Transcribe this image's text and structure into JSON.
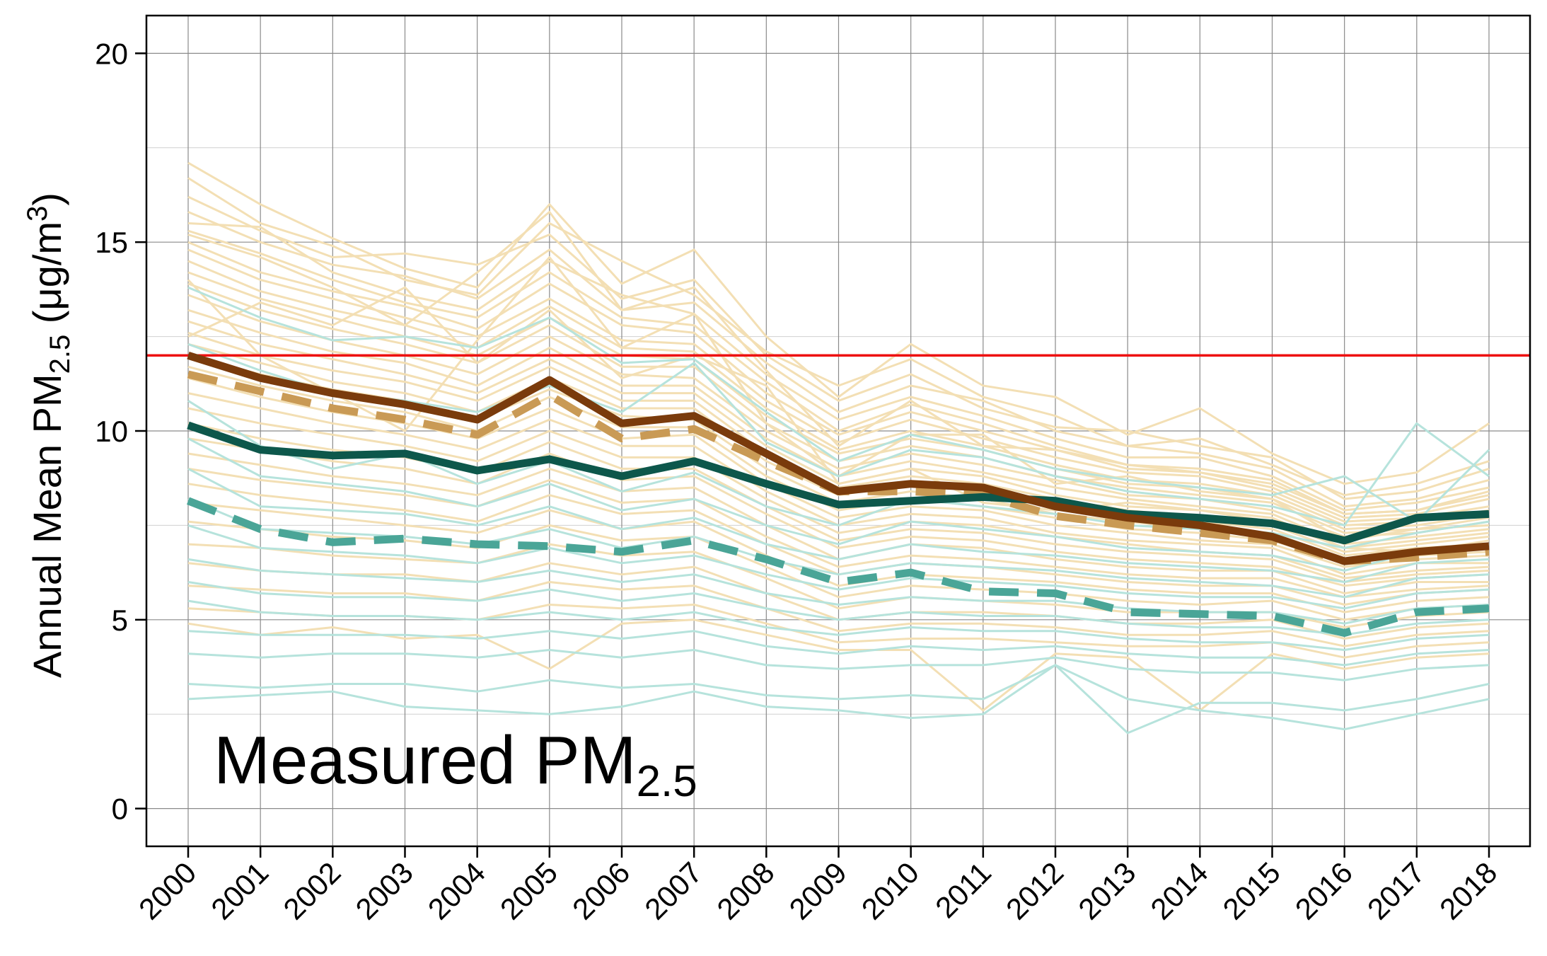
{
  "chart_data": {
    "type": "line",
    "title": "",
    "xlabel": "",
    "ylabel": {
      "prefix": "Annual Mean PM",
      "subscript": "2.5",
      "unit_open": " (μg/m",
      "unit_sup": "3",
      "unit_close": ")"
    },
    "panel_label": {
      "main": "Measured PM",
      "subscript": "2.5"
    },
    "x": [
      "2000",
      "2001",
      "2002",
      "2003",
      "2004",
      "2005",
      "2006",
      "2007",
      "2008",
      "2009",
      "2010",
      "2011",
      "2012",
      "2013",
      "2014",
      "2015",
      "2016",
      "2017",
      "2018"
    ],
    "ylim": [
      -1,
      21
    ],
    "yticks": [
      0,
      5,
      10,
      15,
      20
    ],
    "grid": true,
    "reference_line": {
      "value": 12,
      "color": "#ee1111"
    },
    "colors": {
      "background_thin_tan": "#f3dfb4",
      "background_thin_teal": "#b6e3dc",
      "dark_brown": "#7a3b0c",
      "tan_dashed": "#c99a55",
      "dark_teal": "#0d574b",
      "teal_dashed": "#4aa597"
    },
    "series": [
      {
        "style": "solid-thick",
        "color": "#7a3b0c",
        "values": [
          12.0,
          11.4,
          11.0,
          10.7,
          10.3,
          11.35,
          10.2,
          10.4,
          9.4,
          8.4,
          8.6,
          8.5,
          8.0,
          7.7,
          7.5,
          7.2,
          6.55,
          6.8,
          6.95
        ]
      },
      {
        "style": "dashed-thick",
        "color": "#c99a55",
        "values": [
          11.5,
          11.05,
          10.6,
          10.3,
          9.9,
          10.95,
          9.8,
          10.05,
          9.2,
          8.4,
          8.4,
          8.3,
          7.75,
          7.5,
          7.3,
          7.1,
          6.55,
          6.65,
          6.8
        ]
      },
      {
        "style": "solid-thick",
        "color": "#0d574b",
        "values": [
          10.15,
          9.5,
          9.35,
          9.4,
          8.95,
          9.25,
          8.8,
          9.2,
          8.6,
          8.05,
          8.15,
          8.25,
          8.15,
          7.8,
          7.7,
          7.55,
          7.1,
          7.7,
          7.8
        ]
      },
      {
        "style": "dashed-thick",
        "color": "#4aa597",
        "values": [
          8.15,
          7.4,
          7.05,
          7.15,
          7.0,
          6.95,
          6.8,
          7.1,
          6.6,
          6.0,
          6.25,
          5.75,
          5.7,
          5.2,
          5.15,
          5.1,
          4.65,
          5.2,
          5.3
        ]
      }
    ],
    "background_series_tan": [
      [
        17.1,
        16.0,
        15.1,
        14.3,
        13.8,
        16.0,
        13.9,
        14.8,
        12.5,
        10.9,
        12.3,
        11.2,
        10.9,
        9.9,
        10.6,
        9.4,
        8.6,
        8.9,
        10.2
      ],
      [
        16.7,
        15.5,
        14.9,
        14.0,
        13.6,
        15.5,
        14.5,
        13.6,
        12.1,
        11.2,
        11.9,
        10.9,
        10.4,
        9.6,
        9.8,
        9.1,
        8.3,
        8.6,
        9.2
      ],
      [
        16.2,
        15.3,
        14.6,
        14.7,
        14.4,
        15.2,
        13.5,
        14.0,
        12.0,
        10.8,
        11.5,
        10.6,
        10.1,
        10.0,
        9.6,
        9.3,
        8.2,
        8.4,
        9.0
      ],
      [
        15.8,
        15.0,
        14.4,
        14.1,
        13.5,
        14.8,
        13.2,
        13.4,
        11.8,
        10.5,
        11.2,
        10.8,
        10.0,
        9.6,
        9.4,
        9.0,
        8.0,
        8.2,
        8.7
      ],
      [
        15.5,
        15.4,
        14.2,
        13.6,
        13.2,
        14.5,
        13.6,
        13.1,
        11.5,
        10.3,
        10.9,
        10.4,
        9.8,
        9.3,
        9.3,
        8.8,
        7.9,
        8.1,
        8.5
      ],
      [
        15.3,
        14.7,
        14.0,
        13.4,
        13.0,
        14.2,
        13.0,
        12.8,
        11.3,
        10.0,
        10.7,
        10.2,
        9.6,
        9.1,
        9.0,
        8.7,
        7.8,
        7.9,
        8.3
      ],
      [
        15.0,
        14.2,
        13.7,
        13.3,
        12.7,
        13.9,
        12.8,
        12.6,
        11.0,
        9.9,
        10.5,
        10.0,
        9.5,
        9.0,
        8.9,
        8.5,
        7.7,
        7.8,
        8.2
      ],
      [
        14.8,
        14.0,
        13.5,
        13.0,
        12.5,
        13.5,
        12.4,
        12.3,
        10.8,
        9.7,
        10.3,
        9.8,
        9.3,
        8.9,
        8.8,
        8.4,
        7.6,
        7.7,
        8.0
      ],
      [
        14.5,
        13.7,
        13.2,
        12.8,
        12.2,
        13.3,
        12.2,
        12.1,
        10.6,
        9.5,
        10.0,
        9.6,
        9.1,
        8.7,
        8.6,
        8.3,
        7.5,
        7.6,
        7.9
      ],
      [
        14.2,
        13.5,
        13.0,
        12.5,
        12.0,
        13.0,
        12.0,
        11.9,
        10.4,
        9.4,
        9.8,
        9.5,
        9.0,
        8.6,
        8.5,
        8.2,
        7.4,
        7.5,
        7.8
      ],
      [
        13.9,
        13.2,
        12.7,
        12.3,
        11.8,
        12.8,
        11.7,
        11.7,
        10.2,
        9.2,
        9.6,
        9.3,
        8.8,
        8.5,
        8.3,
        8.1,
        7.3,
        7.4,
        7.7
      ],
      [
        13.6,
        12.9,
        12.4,
        12.0,
        11.5,
        12.5,
        11.5,
        11.4,
        10.0,
        9.0,
        9.4,
        9.1,
        8.7,
        8.3,
        8.2,
        7.9,
        7.2,
        7.3,
        7.6
      ],
      [
        13.2,
        12.6,
        12.1,
        11.8,
        11.2,
        12.2,
        11.2,
        11.2,
        9.8,
        8.8,
        9.2,
        8.9,
        8.5,
        8.2,
        8.0,
        7.8,
        7.0,
        7.2,
        7.4
      ],
      [
        12.9,
        12.3,
        11.9,
        11.5,
        11.0,
        11.9,
        11.0,
        11.0,
        9.6,
        8.6,
        9.0,
        8.8,
        8.3,
        8.0,
        7.9,
        7.7,
        6.9,
        7.1,
        7.3
      ],
      [
        12.6,
        12.0,
        11.6,
        11.3,
        10.8,
        11.7,
        10.8,
        10.8,
        9.4,
        8.5,
        8.8,
        8.6,
        8.2,
        7.9,
        7.7,
        7.5,
        6.8,
        7.0,
        7.2
      ],
      [
        12.3,
        11.8,
        11.3,
        11.0,
        10.5,
        11.4,
        10.6,
        10.6,
        9.2,
        8.3,
        8.6,
        8.4,
        8.0,
        7.7,
        7.6,
        7.4,
        6.7,
        6.9,
        7.0
      ],
      [
        12.0,
        11.5,
        11.1,
        10.8,
        10.3,
        11.1,
        10.4,
        10.3,
        9.0,
        8.1,
        8.4,
        8.2,
        7.8,
        7.6,
        7.4,
        7.3,
        6.6,
        6.8,
        6.9
      ],
      [
        11.7,
        11.2,
        10.8,
        10.5,
        10.0,
        10.9,
        10.1,
        10.1,
        8.8,
        7.9,
        8.2,
        8.0,
        7.7,
        7.4,
        7.3,
        7.1,
        6.5,
        6.7,
        6.8
      ],
      [
        11.4,
        10.9,
        10.5,
        10.2,
        9.8,
        10.6,
        9.8,
        9.9,
        8.6,
        7.7,
        8.0,
        7.9,
        7.5,
        7.3,
        7.1,
        7.0,
        6.4,
        6.6,
        6.7
      ],
      [
        11.0,
        10.6,
        10.2,
        9.9,
        9.5,
        10.3,
        9.6,
        9.6,
        8.4,
        7.5,
        7.8,
        7.7,
        7.3,
        7.1,
        7.0,
        6.9,
        6.2,
        6.5,
        6.5
      ],
      [
        10.6,
        10.2,
        9.9,
        9.6,
        9.2,
        10.0,
        9.3,
        9.3,
        8.2,
        7.3,
        7.6,
        7.5,
        7.2,
        7.0,
        6.8,
        6.7,
        6.1,
        6.3,
        6.4
      ],
      [
        10.2,
        9.8,
        9.5,
        9.3,
        8.9,
        9.7,
        9.0,
        9.0,
        8.0,
        7.1,
        7.4,
        7.3,
        7.0,
        6.8,
        6.7,
        6.6,
        6.0,
        6.2,
        6.3
      ],
      [
        9.8,
        9.5,
        9.2,
        9.0,
        8.6,
        9.4,
        8.7,
        8.8,
        7.8,
        6.9,
        7.2,
        7.1,
        6.8,
        6.6,
        6.5,
        6.4,
        5.9,
        6.1,
        6.2
      ],
      [
        9.4,
        9.1,
        8.8,
        8.6,
        8.3,
        9.0,
        8.4,
        8.5,
        7.5,
        6.6,
        7.0,
        6.9,
        6.6,
        6.4,
        6.3,
        6.3,
        5.7,
        6.0,
        6.0
      ],
      [
        9.0,
        8.7,
        8.5,
        8.3,
        8.0,
        8.7,
        8.1,
        8.2,
        7.2,
        6.4,
        6.7,
        6.6,
        6.4,
        6.2,
        6.1,
        6.1,
        5.6,
        5.8,
        5.9
      ],
      [
        8.6,
        8.3,
        8.1,
        7.9,
        7.6,
        8.3,
        7.8,
        7.9,
        7.0,
        6.2,
        6.5,
        6.4,
        6.2,
        6.0,
        5.9,
        5.9,
        5.4,
        5.7,
        5.8
      ],
      [
        8.1,
        7.9,
        7.7,
        7.5,
        7.3,
        7.9,
        7.4,
        7.6,
        6.7,
        5.9,
        6.2,
        6.1,
        6.0,
        5.8,
        5.7,
        5.7,
        5.2,
        5.5,
        5.6
      ],
      [
        7.6,
        7.4,
        7.2,
        7.1,
        6.9,
        7.5,
        7.1,
        7.2,
        6.4,
        5.6,
        5.9,
        5.8,
        5.7,
        5.5,
        5.4,
        5.5,
        5.0,
        5.3,
        5.4
      ],
      [
        7.0,
        6.9,
        6.7,
        6.6,
        6.5,
        7.0,
        6.7,
        6.8,
        6.1,
        5.3,
        5.6,
        5.5,
        5.4,
        5.2,
        5.2,
        5.2,
        4.8,
        5.1,
        5.2
      ],
      [
        6.5,
        6.3,
        6.2,
        6.2,
        6.0,
        6.5,
        6.2,
        6.4,
        5.7,
        5.0,
        5.2,
        5.2,
        5.1,
        4.9,
        4.9,
        5.0,
        4.5,
        4.8,
        4.9
      ],
      [
        5.9,
        5.8,
        5.7,
        5.7,
        5.5,
        6.0,
        5.8,
        5.9,
        5.3,
        4.7,
        4.9,
        4.9,
        4.8,
        4.6,
        4.6,
        4.7,
        4.3,
        4.6,
        4.7
      ],
      [
        5.3,
        5.2,
        5.1,
        5.1,
        5.0,
        5.4,
        5.3,
        5.4,
        4.9,
        4.4,
        4.5,
        4.5,
        4.4,
        4.3,
        4.3,
        4.4,
        4.0,
        4.3,
        4.4
      ],
      [
        4.9,
        4.6,
        4.8,
        4.5,
        4.6,
        3.7,
        4.9,
        5.0,
        4.6,
        4.2,
        4.2,
        2.6,
        4.1,
        4.0,
        2.6,
        4.1,
        3.7,
        4.0,
        4.1
      ],
      [
        14.0,
        12.0,
        11.0,
        10.0,
        12.4,
        14.6,
        12.2,
        13.1,
        10.2,
        8.8,
        9.9,
        9.9,
        8.6,
        8.8,
        8.4,
        8.2,
        7.1,
        7.4,
        7.5
      ],
      [
        12.5,
        13.4,
        12.8,
        13.8,
        11.8,
        13.2,
        11.4,
        12.0,
        11.2,
        8.6,
        9.0,
        8.1,
        7.9,
        8.1,
        7.9,
        7.6,
        6.9,
        6.8,
        7.1
      ],
      [
        15.2,
        14.6,
        13.8,
        12.8,
        14.2,
        15.8,
        13.2,
        13.8,
        11.6,
        9.6,
        10.8,
        9.6,
        9.5,
        9.1,
        8.9,
        8.6,
        7.8,
        7.9,
        8.4
      ]
    ],
    "background_series_teal": [
      [
        13.8,
        13.0,
        12.4,
        12.5,
        12.2,
        13.0,
        11.8,
        11.9,
        10.5,
        9.2,
        9.9,
        9.5,
        9.0,
        8.7,
        8.5,
        8.3,
        8.8,
        7.6,
        9.5
      ],
      [
        12.3,
        11.6,
        11.0,
        10.8,
        10.5,
        11.2,
        10.5,
        11.8,
        9.7,
        8.8,
        9.5,
        9.3,
        8.8,
        8.4,
        8.2,
        8.0,
        7.5,
        10.2,
        8.8
      ],
      [
        10.8,
        9.6,
        9.0,
        9.4,
        8.6,
        9.2,
        8.4,
        8.9,
        8.0,
        7.5,
        8.2,
        8.0,
        7.8,
        7.5,
        7.4,
        7.3,
        6.9,
        7.3,
        7.6
      ],
      [
        9.8,
        8.8,
        8.6,
        8.4,
        8.0,
        8.6,
        7.9,
        8.2,
        7.5,
        7.0,
        7.6,
        7.4,
        7.2,
        6.9,
        6.8,
        6.7,
        6.3,
        6.8,
        7.0
      ],
      [
        9.0,
        8.0,
        7.9,
        7.8,
        7.5,
        8.0,
        7.4,
        7.7,
        7.0,
        6.6,
        7.0,
        6.8,
        6.7,
        6.5,
        6.4,
        6.3,
        6.0,
        6.5,
        6.6
      ],
      [
        8.2,
        7.4,
        7.3,
        7.2,
        7.0,
        7.4,
        6.9,
        7.2,
        6.6,
        6.2,
        6.5,
        6.4,
        6.3,
        6.1,
        6.0,
        5.9,
        5.6,
        6.1,
        6.2
      ],
      [
        7.5,
        6.9,
        6.8,
        6.7,
        6.5,
        6.9,
        6.5,
        6.7,
        6.2,
        5.8,
        6.1,
        6.0,
        5.9,
        5.7,
        5.6,
        5.6,
        5.3,
        5.7,
        5.8
      ],
      [
        6.6,
        6.3,
        6.2,
        6.1,
        6.0,
        6.3,
        6.0,
        6.2,
        5.7,
        5.4,
        5.6,
        5.5,
        5.5,
        5.3,
        5.2,
        5.2,
        4.9,
        5.3,
        5.4
      ],
      [
        6.0,
        5.7,
        5.6,
        5.6,
        5.5,
        5.8,
        5.5,
        5.7,
        5.3,
        5.0,
        5.2,
        5.1,
        5.1,
        4.9,
        4.8,
        4.8,
        4.6,
        4.9,
        5.0
      ],
      [
        5.5,
        5.2,
        5.1,
        5.1,
        5.0,
        5.2,
        5.0,
        5.2,
        4.8,
        4.6,
        4.8,
        4.7,
        4.7,
        4.5,
        4.4,
        4.4,
        4.2,
        4.5,
        4.6
      ],
      [
        4.7,
        4.6,
        4.6,
        4.6,
        4.5,
        4.7,
        4.5,
        4.7,
        4.3,
        4.1,
        4.3,
        4.2,
        4.3,
        4.1,
        4.0,
        4.0,
        3.8,
        4.1,
        4.2
      ],
      [
        4.1,
        4.0,
        4.1,
        4.1,
        4.0,
        4.2,
        4.0,
        4.2,
        3.8,
        3.7,
        3.8,
        3.8,
        4.0,
        3.7,
        3.6,
        3.6,
        3.4,
        3.7,
        3.8
      ],
      [
        3.3,
        3.2,
        3.3,
        3.3,
        3.1,
        3.4,
        3.2,
        3.3,
        3.0,
        2.9,
        3.0,
        2.9,
        3.8,
        2.0,
        2.8,
        2.8,
        2.6,
        2.9,
        3.3
      ],
      [
        2.9,
        3.0,
        3.1,
        2.7,
        2.6,
        2.5,
        2.7,
        3.1,
        2.7,
        2.6,
        2.4,
        2.5,
        3.8,
        2.9,
        2.6,
        2.4,
        2.1,
        2.5,
        2.9
      ]
    ]
  }
}
